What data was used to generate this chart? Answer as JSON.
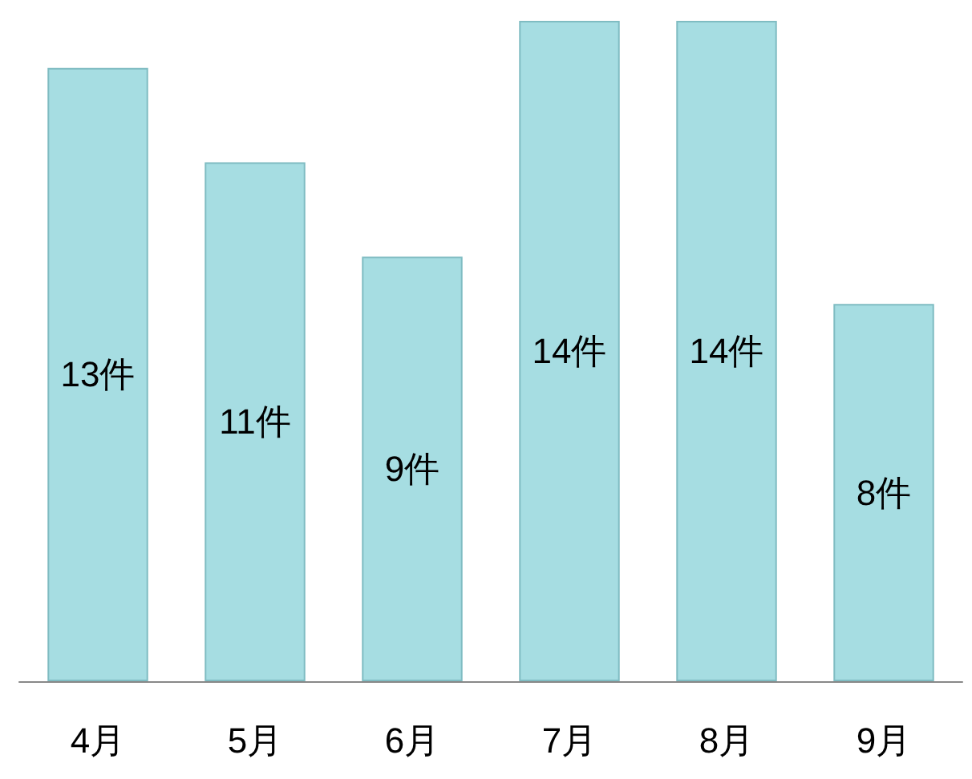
{
  "chart_data": {
    "type": "bar",
    "categories": [
      "4月",
      "5月",
      "6月",
      "7月",
      "8月",
      "9月"
    ],
    "values": [
      13,
      11,
      9,
      14,
      14,
      8
    ],
    "value_labels": [
      "13件",
      "11件",
      "9件",
      "14件",
      "14件",
      "8件"
    ],
    "color": "#a6dde2"
  }
}
